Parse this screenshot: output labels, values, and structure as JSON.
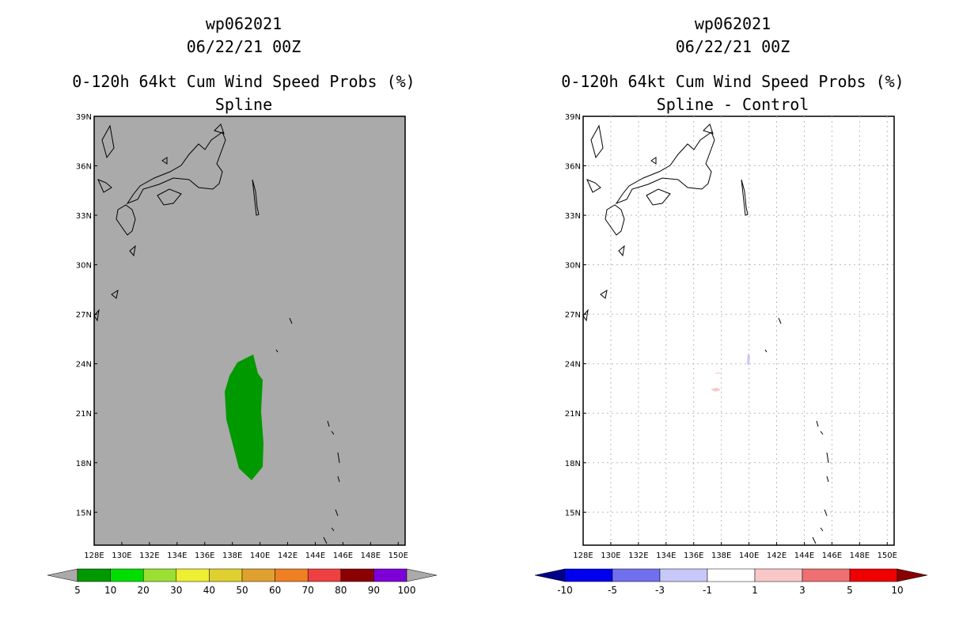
{
  "panels": [
    {
      "title": [
        "wp062021",
        "06/22/21 00Z",
        "0-120h 64kt Cum Wind Speed Probs (%)",
        "Spline"
      ],
      "background": "#aaaaaa"
    },
    {
      "title": [
        "wp062021",
        "06/22/21 00Z",
        "0-120h 64kt Cum Wind Speed Probs (%)",
        "Spline - Control"
      ],
      "background": "#ffffff"
    }
  ],
  "axes": {
    "lon_ticks": [
      "128E",
      "130E",
      "132E",
      "134E",
      "136E",
      "138E",
      "140E",
      "142E",
      "144E",
      "146E",
      "148E",
      "150E"
    ],
    "lat_ticks": [
      "39N",
      "36N",
      "33N",
      "30N",
      "27N",
      "24N",
      "21N",
      "18N",
      "15N"
    ],
    "lon_range": [
      128,
      150.5
    ],
    "lat_range": [
      13,
      39
    ]
  },
  "colorbars": [
    {
      "labels": [
        "5",
        "10",
        "20",
        "30",
        "40",
        "50",
        "60",
        "70",
        "80",
        "90",
        "100"
      ],
      "colors": [
        "#009900",
        "#00dd00",
        "#99e033",
        "#eeee33",
        "#dfd030",
        "#e0a030",
        "#ee7f22",
        "#ee4040",
        "#8b0000",
        "#7d00d8"
      ],
      "under": "#aaaaaa",
      "over": "#aaaaaa"
    },
    {
      "labels": [
        "-10",
        "-5",
        "-3",
        "-1",
        "1",
        "3",
        "5",
        "10"
      ],
      "colors": [
        "#0000ee",
        "#7070ee",
        "#c8c8f8",
        "#ffffff",
        "#f8c8c8",
        "#ee7070",
        "#ee0000"
      ],
      "under": "#000088",
      "over": "#880000"
    }
  ]
}
